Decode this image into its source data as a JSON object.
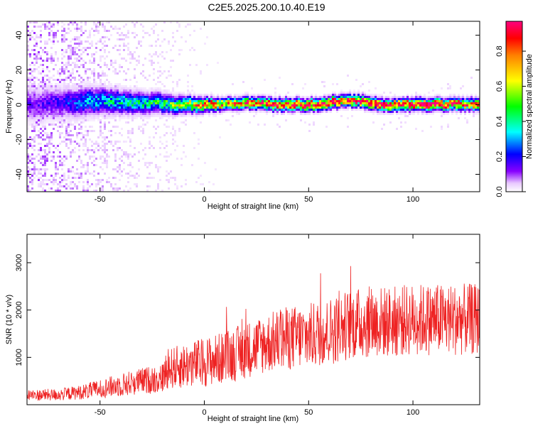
{
  "title": "C2E5.2025.200.10.40.E19",
  "colors": {
    "frame": "#000000",
    "snr_line": "#ee2222"
  },
  "chart_data": [
    {
      "type": "heatmap",
      "xlabel": "Height of straight line (km)",
      "ylabel": "Frequency (Hz)",
      "xlim": [
        -85,
        132
      ],
      "ylim": [
        -50,
        48
      ],
      "xticks": [
        -50,
        0,
        50,
        100
      ],
      "yticks": [
        -40,
        -20,
        0,
        20,
        40
      ],
      "colorbar": {
        "label": "Normalized spectral amplitude",
        "range": [
          0,
          0.97
        ],
        "ticks": [
          0.0,
          0.2,
          0.4,
          0.6,
          0.8
        ],
        "tick_labels": [
          "0.0",
          "0.2",
          "0.4",
          "0.6",
          "0.8"
        ],
        "colormap": [
          "#ffffff",
          "#e8c8ff",
          "#8800ff",
          "#0000ff",
          "#00ffff",
          "#00ff00",
          "#ffff00",
          "#ff0000",
          "#ff0080"
        ]
      },
      "ridge": {
        "x": [
          -85,
          -70,
          -55,
          -45,
          -35,
          -25,
          -15,
          -5,
          5,
          15,
          25,
          35,
          45,
          55,
          65,
          75,
          85,
          95,
          105,
          115,
          125,
          132
        ],
        "center_hz": [
          0,
          1,
          2,
          2,
          1,
          1,
          0,
          0,
          0,
          1,
          1,
          0,
          0,
          0,
          2,
          2,
          0,
          0,
          0,
          0,
          0,
          0
        ],
        "peak_amplitude": [
          0.25,
          0.3,
          0.45,
          0.5,
          0.5,
          0.55,
          0.6,
          0.75,
          0.8,
          0.8,
          0.85,
          0.9,
          0.92,
          0.92,
          0.9,
          0.92,
          0.95,
          0.95,
          0.95,
          0.9,
          0.85,
          0.85
        ]
      }
    },
    {
      "type": "line",
      "xlabel": "Height of straight line (km)",
      "ylabel": "SNR (10 * v/v)",
      "xlim": [
        -85,
        132
      ],
      "ylim": [
        0,
        3600
      ],
      "xticks": [
        -50,
        0,
        50,
        100
      ],
      "yticks": [
        1000,
        2000,
        3000
      ],
      "series": [
        {
          "envelope_x": [
            -85,
            -70,
            -60,
            -50,
            -40,
            -30,
            -20,
            -18,
            -10,
            0,
            10,
            20,
            30,
            40,
            50,
            60,
            70,
            80,
            90,
            100,
            110,
            120,
            132
          ],
          "mean": [
            200,
            210,
            260,
            330,
            420,
            500,
            560,
            750,
            820,
            900,
            1000,
            1150,
            1300,
            1400,
            1450,
            1550,
            1700,
            1750,
            1750,
            1800,
            1800,
            1800,
            1800
          ],
          "spread": [
            120,
            130,
            150,
            200,
            250,
            280,
            320,
            420,
            480,
            520,
            560,
            600,
            640,
            680,
            700,
            720,
            750,
            760,
            760,
            760,
            760,
            760,
            760
          ]
        }
      ]
    }
  ]
}
